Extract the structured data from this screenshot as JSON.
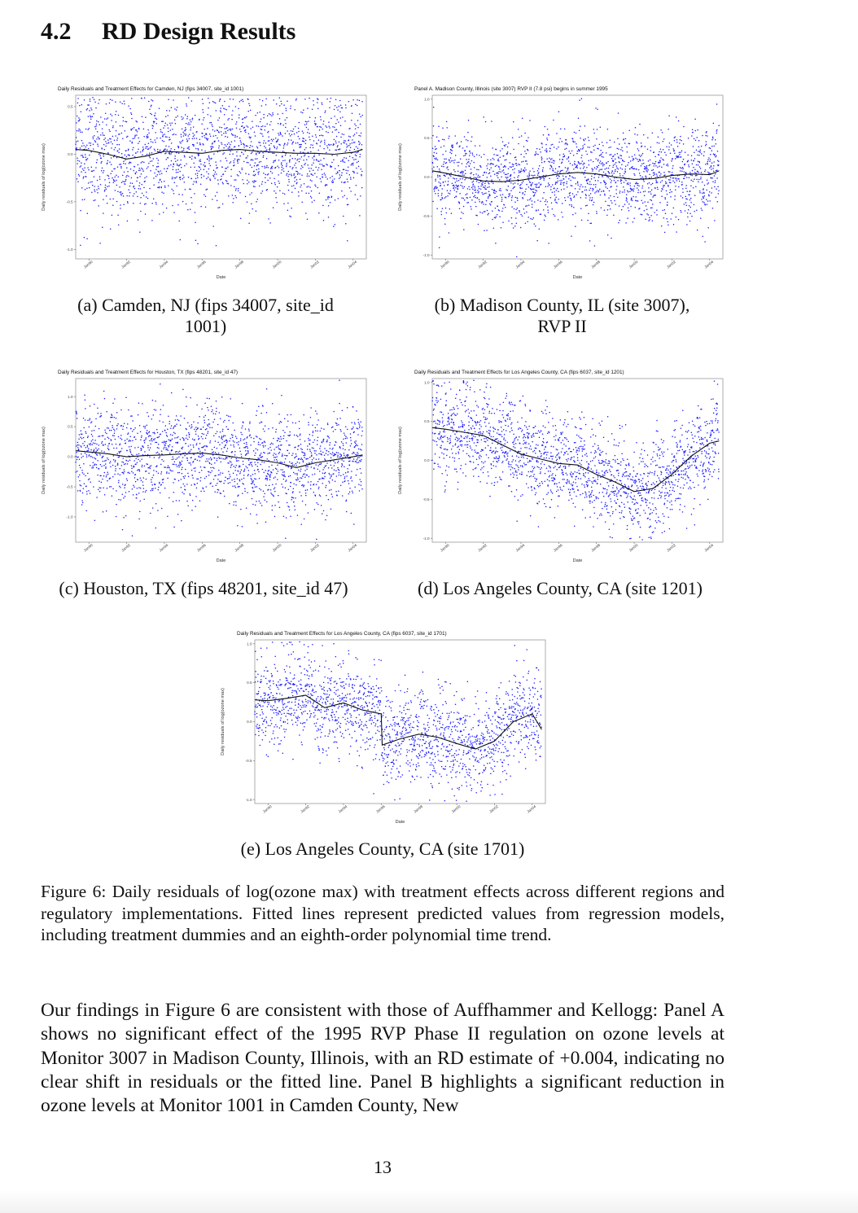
{
  "section": {
    "number": "4.2",
    "title": "RD Design Results"
  },
  "panels": [
    {
      "id": "a",
      "caption_line1": "(a) Camden, NJ (fips 34007, site_id",
      "caption_line2": "1001)",
      "chart_data": {
        "type": "scatter",
        "title": "Daily Residuals and Treatment Effects for Camden, NJ (fips 34007, site_id 1001)",
        "xlabel": "Date",
        "ylabel": "Daily residuals of log(ozone max)",
        "yticks": [
          "0.5",
          "0.0",
          "-0.5",
          "-1.0"
        ],
        "ytick_values": [
          0.5,
          0.0,
          -0.5,
          -1.0
        ],
        "ylim": [
          -1.1,
          0.62
        ],
        "xticks": [
          "Jan90",
          "Jan92",
          "Jan94",
          "Jan96",
          "Jan98",
          "Jan00",
          "Jan02",
          "Jan04"
        ],
        "xlim": [
          1989.3,
          2004.7
        ],
        "point_color": "#1a1aff",
        "series": [
          {
            "type": "scatter",
            "x_range": [
              1989.3,
              2004.5
            ],
            "y_center": 0.02,
            "y_spread": 0.3,
            "seasonal_amp": 0.12,
            "n_points": 1900
          },
          {
            "type": "line",
            "x": [
              1989.3,
              1990.0,
              1991.0,
              1992.0,
              1993.0,
              1994.0,
              1995.0,
              1996.0,
              1997.0,
              1998.0,
              1999.0,
              2000.0,
              2001.0,
              2002.0,
              2003.0,
              2004.0,
              2004.5
            ],
            "y": [
              0.05,
              0.04,
              0.0,
              -0.05,
              -0.02,
              0.03,
              0.02,
              0.01,
              0.04,
              0.05,
              0.03,
              0.02,
              0.01,
              0.01,
              0.0,
              0.02,
              0.05
            ]
          }
        ]
      }
    },
    {
      "id": "b",
      "caption_line1": "(b) Madison County, IL (site 3007),",
      "caption_line2": "RVP II",
      "chart_data": {
        "type": "scatter",
        "title": "Panel A. Madison County, Illinois (site 3007) RVP II (7.8 psi) begins in summer 1995",
        "xlabel": "Date",
        "ylabel": "Daily residuals of log(ozone max)",
        "yticks": [
          "1.0",
          "0.5",
          "0.0",
          "-0.5",
          "-1.0"
        ],
        "ytick_values": [
          1.0,
          0.5,
          0.0,
          -0.5,
          -1.0
        ],
        "ylim": [
          -1.05,
          1.05
        ],
        "xticks": [
          "Jan90",
          "Jan92",
          "Jan94",
          "Jan96",
          "Jan98",
          "Jan00",
          "Jan02",
          "Jan04"
        ],
        "xlim": [
          1989.3,
          2004.7
        ],
        "point_color": "#1a1aff",
        "series": [
          {
            "type": "scatter",
            "x_range": [
              1989.3,
              2004.5
            ],
            "y_center": 0.05,
            "y_spread": 0.3,
            "seasonal_amp": 0.15,
            "n_points": 1900
          },
          {
            "type": "line",
            "x": [
              1989.3,
              1990.0,
              1991.0,
              1992.0,
              1993.0,
              1994.0,
              1995.0,
              1996.0,
              1997.0,
              1998.0,
              1999.0,
              2000.0,
              2001.0,
              2002.0,
              2003.0,
              2004.0,
              2004.5
            ],
            "y": [
              0.08,
              0.05,
              0.0,
              -0.05,
              -0.06,
              -0.04,
              0.0,
              0.04,
              0.06,
              0.04,
              0.0,
              -0.03,
              -0.02,
              0.02,
              0.04,
              0.03,
              0.08
            ]
          }
        ]
      }
    },
    {
      "id": "c",
      "caption_line1": "(c) Houston, TX (fips 48201, site_id 47)",
      "caption_line2": "",
      "chart_data": {
        "type": "scatter",
        "title": "Daily Residuals and Treatment Effects for Houston, TX (fips 48201, site_id 47)",
        "xlabel": "Date",
        "ylabel": "Daily residuals of log(ozone max)",
        "yticks": [
          "1.0",
          "0.5",
          "0.0",
          "-0.5",
          "-1.0"
        ],
        "ytick_values": [
          1.0,
          0.5,
          0.0,
          -0.5,
          -1.0
        ],
        "ylim": [
          -1.42,
          1.3
        ],
        "xticks": [
          "Jan90",
          "Jan92",
          "Jan94",
          "Jan96",
          "Jan98",
          "Jan00",
          "Jan02",
          "Jan04"
        ],
        "xlim": [
          1989.3,
          2004.7
        ],
        "point_color": "#1a1aff",
        "series": [
          {
            "type": "scatter",
            "x_range": [
              1989.3,
              2004.5
            ],
            "y_center": 0.0,
            "y_spread": 0.42,
            "seasonal_amp": 0.15,
            "n_points": 1900
          },
          {
            "type": "line",
            "x": [
              1989.3,
              1990.0,
              1991.0,
              1992.0,
              1993.0,
              1994.0,
              1995.0,
              1996.0,
              1997.0,
              1998.0,
              1999.0,
              2000.0,
              2001.0,
              2002.0,
              2003.0,
              2004.0,
              2004.5
            ],
            "y": [
              0.1,
              0.08,
              0.05,
              0.0,
              0.02,
              0.03,
              0.05,
              0.06,
              0.03,
              -0.02,
              -0.05,
              -0.1,
              -0.18,
              -0.1,
              -0.05,
              0.0,
              0.03
            ]
          }
        ]
      }
    },
    {
      "id": "d",
      "caption_line1": "(d) Los Angeles County, CA (site 1201)",
      "caption_line2": "",
      "chart_data": {
        "type": "scatter",
        "title": "Daily Residuals and Treatment Effects for Los Angeles County, CA (fips 6037, site_id 1201)",
        "xlabel": "Date",
        "ylabel": "Daily residuals of log(ozone max)",
        "yticks": [
          "1.0",
          "0.5",
          "0.0",
          "-0.5",
          "-1.0"
        ],
        "ytick_values": [
          1.0,
          0.5,
          0.0,
          -0.5,
          -1.0
        ],
        "ylim": [
          -1.05,
          1.05
        ],
        "xticks": [
          "Jan90",
          "Jan92",
          "Jan94",
          "Jan96",
          "Jan98",
          "Jan00",
          "Jan02",
          "Jan04"
        ],
        "xlim": [
          1989.3,
          2004.7
        ],
        "point_color": "#1a1aff",
        "series": [
          {
            "type": "scatter",
            "x_range": [
              1989.3,
              2004.5
            ],
            "y_center": 0.0,
            "y_spread": 0.3,
            "seasonal_amp": 0.15,
            "n_points": 1900
          },
          {
            "type": "line",
            "x": [
              1989.3,
              1990.0,
              1991.0,
              1992.0,
              1993.0,
              1994.0,
              1995.0,
              1996.0,
              1997.0,
              1998.0,
              1999.0,
              2000.0,
              2001.0,
              2002.0,
              2003.0,
              2004.0,
              2004.5
            ],
            "y": [
              0.42,
              0.4,
              0.36,
              0.32,
              0.2,
              0.08,
              0.02,
              -0.04,
              -0.06,
              -0.18,
              -0.28,
              -0.4,
              -0.36,
              -0.18,
              0.05,
              0.22,
              0.25
            ]
          }
        ]
      }
    },
    {
      "id": "e",
      "caption_line1": "(e) Los Angeles County, CA (site 1701)",
      "caption_line2": "",
      "chart_data": {
        "type": "scatter",
        "title": "Daily Residuals and Treatment Effects for Los Angeles County, CA (fips 6037, site_id 1701)",
        "xlabel": "Date",
        "ylabel": "Daily residuals of log(ozone max)",
        "yticks": [
          "1.0",
          "0.5",
          "0.0",
          "-0.5",
          "-1.0"
        ],
        "ytick_values": [
          1.0,
          0.5,
          0.0,
          -0.5,
          -1.0
        ],
        "ylim": [
          -1.05,
          1.05
        ],
        "xticks": [
          "Jan90",
          "Jan92",
          "Jan94",
          "Jan96",
          "Jan98",
          "Jan00",
          "Jan02",
          "Jan04"
        ],
        "xlim": [
          1989.3,
          2004.7
        ],
        "point_color": "#1a1aff",
        "series": [
          {
            "type": "scatter",
            "x_range": [
              1989.3,
              2004.5
            ],
            "y_center": 0.0,
            "y_spread": 0.3,
            "seasonal_amp": 0.15,
            "n_points": 1900
          },
          {
            "type": "line",
            "x": [
              1989.3,
              1990.0,
              1991.0,
              1992.0,
              1993.0,
              1994.0,
              1995.0,
              1996.0,
              1996.05,
              1997.0,
              1998.0,
              1999.0,
              2000.0,
              2001.0,
              2002.0,
              2003.0,
              2004.0,
              2004.5
            ],
            "y": [
              0.28,
              0.27,
              0.3,
              0.34,
              0.18,
              0.24,
              0.15,
              0.1,
              -0.3,
              -0.22,
              -0.16,
              -0.2,
              -0.28,
              -0.35,
              -0.25,
              0.0,
              0.1,
              -0.1
            ]
          }
        ]
      }
    }
  ],
  "figure_caption": "Figure 6: Daily residuals of log(ozone max) with treatment effects across different regions and regulatory implementations. Fitted lines represent predicted values from regression models, including treatment dummies and an eighth-order polynomial time trend.",
  "body_text": "Our findings in Figure 6 are consistent with those of Auffhammer and Kellogg: Panel A shows no significant effect of the 1995 RVP Phase II regulation on ozone levels at Monitor 3007 in Madison County, Illinois, with an RD estimate of +0.004, indicating no clear shift in residuals or the fitted line. Panel B highlights a significant reduction in ozone levels at Monitor 1001 in Camden County, New",
  "page_number": "13"
}
